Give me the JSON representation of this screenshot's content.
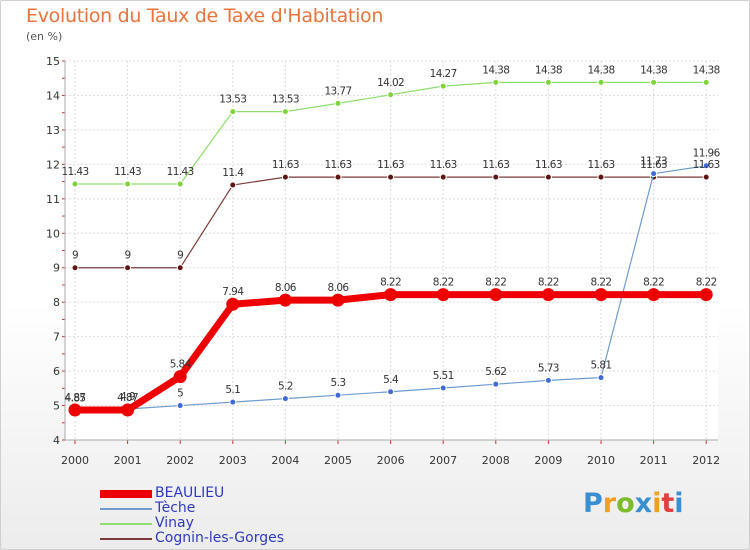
{
  "header": {
    "title": "Evolution du Taux de Taxe d'Habitation",
    "subtitle": "(en %)"
  },
  "logo": {
    "letters": [
      "P",
      "r",
      "o",
      "x",
      "i",
      "t",
      "i"
    ],
    "colors": [
      "#3a8fd0",
      "#f0a020",
      "#7cbb2a",
      "#3a8fd0",
      "#f0a020",
      "#e04040",
      "#3a8fd0"
    ]
  },
  "chart_data": {
    "type": "line",
    "title": "Evolution du Taux de Taxe d'Habitation",
    "subtitle": "(en %)",
    "categories": [
      "2000",
      "2001",
      "2002",
      "2003",
      "2004",
      "2005",
      "2006",
      "2007",
      "2008",
      "2009",
      "2010",
      "2011",
      "2012"
    ],
    "ylim": [
      4,
      15
    ],
    "yticks": [
      "4",
      "5",
      "6",
      "7",
      "8",
      "9",
      "10",
      "11",
      "12",
      "13",
      "14",
      "15"
    ],
    "grid": true,
    "legend_position": "bottom-left",
    "series": [
      {
        "name": "BEAULIEU",
        "color": "#ee0000",
        "values": [
          4.87,
          4.87,
          5.84,
          7.94,
          8.06,
          8.06,
          8.22,
          8.22,
          8.22,
          8.22,
          8.22,
          8.22,
          8.22
        ],
        "labels": [
          "4.87",
          "4.87",
          "5.84",
          "7.94",
          "8.06",
          "8.06",
          "8.22",
          "8.22",
          "8.22",
          "8.22",
          "8.22",
          "8.22",
          "8.22"
        ]
      },
      {
        "name": "Tèche",
        "color": "#6f9ccd",
        "values": [
          4.85,
          4.9,
          5,
          5.1,
          5.2,
          5.3,
          5.4,
          5.51,
          5.62,
          5.73,
          5.81,
          11.73,
          11.96
        ],
        "labels": [
          "4.85",
          "4.9",
          "5",
          "5.1",
          "5.2",
          "5.3",
          "5.4",
          "5.51",
          "5.62",
          "5.73",
          "5.81",
          "11.73",
          "11.96"
        ]
      },
      {
        "name": "Vinay",
        "color": "#90dd70",
        "values": [
          11.43,
          11.43,
          11.43,
          13.53,
          13.53,
          13.77,
          14.02,
          14.27,
          14.38,
          14.38,
          14.38,
          14.38,
          14.38
        ],
        "labels": [
          "11.43",
          "11.43",
          "11.43",
          "13.53",
          "13.53",
          "13.77",
          "14.02",
          "14.27",
          "14.38",
          "14.38",
          "14.38",
          "14.38",
          "14.38"
        ]
      },
      {
        "name": "Cognin-les-Gorges",
        "color": "#7a3a3a",
        "values": [
          9,
          9,
          9,
          11.4,
          11.63,
          11.63,
          11.63,
          11.63,
          11.63,
          11.63,
          11.63,
          11.63,
          11.63
        ],
        "labels": [
          "9",
          "9",
          "9",
          "11.4",
          "11.63",
          "11.63",
          "11.63",
          "11.63",
          "11.63",
          "11.63",
          "11.63",
          "11.63",
          "11.63"
        ]
      }
    ]
  }
}
